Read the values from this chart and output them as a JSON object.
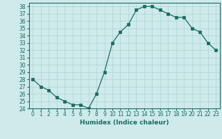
{
  "x": [
    0,
    1,
    2,
    3,
    4,
    5,
    6,
    7,
    8,
    9,
    10,
    11,
    12,
    13,
    14,
    15,
    16,
    17,
    18,
    19,
    20,
    21,
    22,
    23
  ],
  "y": [
    28,
    27,
    26.5,
    25.5,
    25,
    24.5,
    24.5,
    24,
    26,
    29,
    33,
    34.5,
    35.5,
    37.5,
    38,
    38,
    37.5,
    37,
    36.5,
    36.5,
    35,
    34.5,
    33,
    32
  ],
  "line_color": "#1a6b5e",
  "marker": "s",
  "marker_size": 2.5,
  "bg_color": "#ceeaea",
  "grid_color": "#afd4d4",
  "xlabel": "Humidex (Indice chaleur)",
  "xlim": [
    -0.5,
    23.5
  ],
  "ylim": [
    24,
    38.5
  ],
  "yticks": [
    24,
    25,
    26,
    27,
    28,
    29,
    30,
    31,
    32,
    33,
    34,
    35,
    36,
    37,
    38
  ],
  "xticks": [
    0,
    1,
    2,
    3,
    4,
    5,
    6,
    7,
    8,
    9,
    10,
    11,
    12,
    13,
    14,
    15,
    16,
    17,
    18,
    19,
    20,
    21,
    22,
    23
  ],
  "tick_fontsize": 5.5,
  "xlabel_fontsize": 6.5
}
